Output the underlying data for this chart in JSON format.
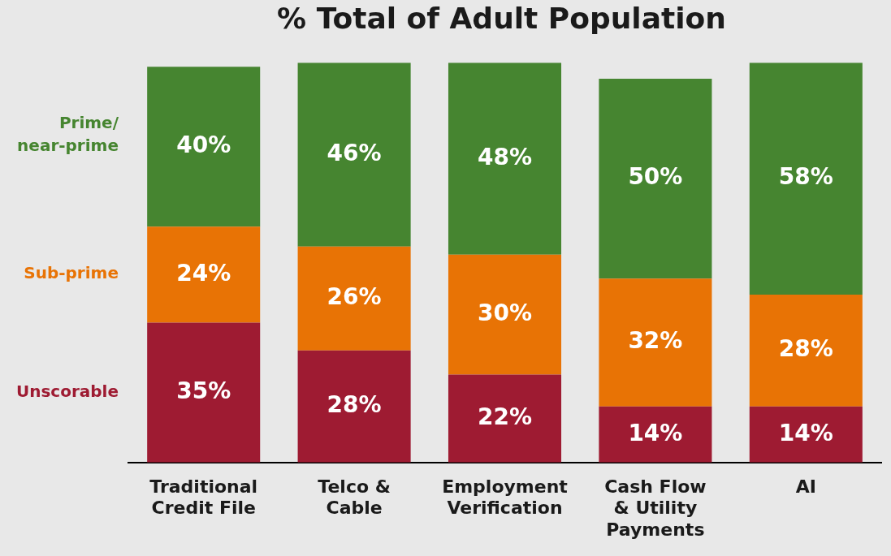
{
  "chart_data": {
    "type": "bar",
    "title": "% Total of Adult Population",
    "stacked": true,
    "legend": false,
    "grid": false,
    "categories": [
      "Traditional Credit File",
      "Telco & Cable",
      "Employment Verification",
      "Cash Flow & Utility Payments",
      "AI"
    ],
    "series": [
      {
        "name": "Unscorable",
        "color": "#9e1b32",
        "values": [
          35,
          28,
          22,
          14,
          14
        ],
        "value_labels": [
          "35%",
          "28%",
          "22%",
          "14%",
          "14%"
        ]
      },
      {
        "name": "Sub-prime",
        "color": "#e87305",
        "values": [
          24,
          26,
          30,
          32,
          28
        ],
        "value_labels": [
          "24%",
          "26%",
          "30%",
          "32%",
          "28%"
        ]
      },
      {
        "name": "Prime/\nnear-prime",
        "color": "#468530",
        "values": [
          40,
          46,
          48,
          50,
          58
        ],
        "value_labels": [
          "40%",
          "46%",
          "48%",
          "50%",
          "58%"
        ]
      }
    ]
  }
}
